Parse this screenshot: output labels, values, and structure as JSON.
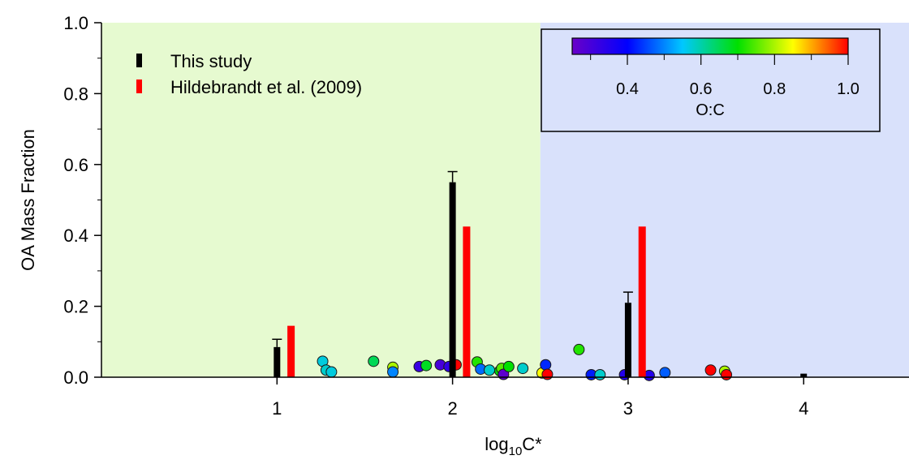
{
  "chart_data": {
    "type": "bar",
    "xlabel_base": "log",
    "xlabel_sub": "10",
    "xlabel_rest": "C*",
    "ylabel": "OA Mass Fraction",
    "xlim": [
      0.0,
      4.6
    ],
    "ylim": [
      0.0,
      1.0
    ],
    "x_ticks": [
      1,
      2,
      3,
      4
    ],
    "y_ticks": [
      "0.0",
      "0.2",
      "0.4",
      "0.6",
      "0.8",
      "1.0"
    ],
    "grid": false,
    "background_regions": [
      {
        "x_from": 0.0,
        "x_to": 2.5,
        "color": "#e6fad0"
      },
      {
        "x_from": 2.5,
        "x_to": 4.6,
        "color": "#d9e1fb"
      }
    ],
    "series": [
      {
        "name": "This study",
        "color": "#000000",
        "points": [
          {
            "x": 1,
            "y": 0.085,
            "err": 0.022
          },
          {
            "x": 2,
            "y": 0.55,
            "err": 0.03
          },
          {
            "x": 3,
            "y": 0.21,
            "err": 0.03
          },
          {
            "x": 4,
            "y": 0.01,
            "err": 0.0
          }
        ]
      },
      {
        "name": "Hildebrandt et al. (2009)",
        "color": "#ff0000",
        "points": [
          {
            "x": 1.08,
            "y": 0.145
          },
          {
            "x": 2.08,
            "y": 0.425
          },
          {
            "x": 3.08,
            "y": 0.425
          }
        ]
      }
    ],
    "scatter_points": [
      {
        "x": 1.26,
        "y": 0.045,
        "oc": 0.57
      },
      {
        "x": 1.28,
        "y": 0.02,
        "oc": 0.58
      },
      {
        "x": 1.31,
        "y": 0.015,
        "oc": 0.57
      },
      {
        "x": 1.55,
        "y": 0.045,
        "oc": 0.65
      },
      {
        "x": 1.66,
        "y": 0.028,
        "oc": 0.8
      },
      {
        "x": 1.66,
        "y": 0.015,
        "oc": 0.5
      },
      {
        "x": 1.81,
        "y": 0.03,
        "oc": 0.32
      },
      {
        "x": 1.85,
        "y": 0.033,
        "oc": 0.68
      },
      {
        "x": 1.93,
        "y": 0.035,
        "oc": 0.3
      },
      {
        "x": 1.98,
        "y": 0.03,
        "oc": 0.33
      },
      {
        "x": 2.02,
        "y": 0.035,
        "oc": 1.0
      },
      {
        "x": 2.14,
        "y": 0.043,
        "oc": 0.72
      },
      {
        "x": 2.16,
        "y": 0.023,
        "oc": 0.48
      },
      {
        "x": 2.21,
        "y": 0.02,
        "oc": 0.58
      },
      {
        "x": 2.27,
        "y": 0.018,
        "oc": 0.7
      },
      {
        "x": 2.28,
        "y": 0.025,
        "oc": 0.75
      },
      {
        "x": 2.29,
        "y": 0.008,
        "oc": 0.27
      },
      {
        "x": 2.32,
        "y": 0.03,
        "oc": 0.7
      },
      {
        "x": 2.4,
        "y": 0.025,
        "oc": 0.58
      },
      {
        "x": 2.51,
        "y": 0.012,
        "oc": 0.85
      },
      {
        "x": 2.53,
        "y": 0.035,
        "oc": 0.43
      },
      {
        "x": 2.54,
        "y": 0.008,
        "oc": 1.0
      },
      {
        "x": 2.72,
        "y": 0.078,
        "oc": 0.72
      },
      {
        "x": 2.79,
        "y": 0.007,
        "oc": 0.42
      },
      {
        "x": 2.84,
        "y": 0.007,
        "oc": 0.58
      },
      {
        "x": 2.98,
        "y": 0.007,
        "oc": 0.35
      },
      {
        "x": 3.12,
        "y": 0.005,
        "oc": 0.35
      },
      {
        "x": 3.21,
        "y": 0.013,
        "oc": 0.47
      },
      {
        "x": 3.47,
        "y": 0.02,
        "oc": 1.0
      },
      {
        "x": 3.55,
        "y": 0.017,
        "oc": 0.8
      },
      {
        "x": 3.56,
        "y": 0.007,
        "oc": 1.0
      }
    ],
    "colorbar": {
      "label": "O:C",
      "range": [
        0.25,
        1.0
      ],
      "ticks": [
        "0.4",
        "0.6",
        "0.8",
        "1.0"
      ],
      "tick_values": [
        0.4,
        0.6,
        0.8,
        1.0
      ],
      "colors": [
        "#6a00c8",
        "#0000ff",
        "#00c8ff",
        "#00e000",
        "#ffff00",
        "#ff0000"
      ]
    },
    "legend_placement": "top-left"
  }
}
